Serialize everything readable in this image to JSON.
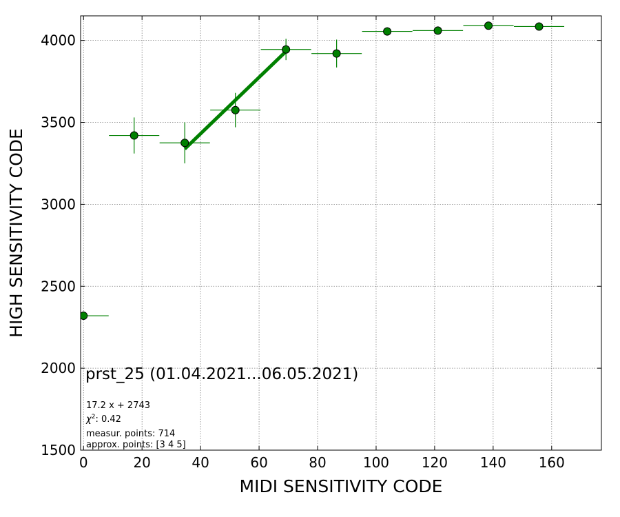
{
  "chart_data": {
    "type": "scatter",
    "title": "",
    "xlabel": "MIDI SENSITIVITY CODE",
    "ylabel": "HIGH SENSITIVITY CODE",
    "xlim": [
      -1,
      177
    ],
    "ylim": [
      1500,
      4150
    ],
    "xticks": [
      0,
      20,
      40,
      60,
      80,
      100,
      120,
      140,
      160
    ],
    "yticks": [
      1500,
      2000,
      2500,
      3000,
      3500,
      4000
    ],
    "grid": true,
    "series": [
      {
        "marker_color": "#008000",
        "points": [
          {
            "x": 0,
            "y": 2320,
            "xerr": 8.6,
            "yerr": 0
          },
          {
            "x": 17.3,
            "y": 3420,
            "xerr": 8.6,
            "yerr": 110
          },
          {
            "x": 34.6,
            "y": 3375,
            "xerr": 8.6,
            "yerr": 125
          },
          {
            "x": 51.9,
            "y": 3575,
            "xerr": 8.6,
            "yerr": 105
          },
          {
            "x": 69.2,
            "y": 3945,
            "xerr": 8.6,
            "yerr": 65
          },
          {
            "x": 86.5,
            "y": 3920,
            "xerr": 8.6,
            "yerr": 85
          },
          {
            "x": 103.8,
            "y": 4055,
            "xerr": 8.6,
            "yerr": 25
          },
          {
            "x": 121.1,
            "y": 4060,
            "xerr": 8.6,
            "yerr": 15
          },
          {
            "x": 138.4,
            "y": 4090,
            "xerr": 8.6,
            "yerr": 10
          },
          {
            "x": 155.7,
            "y": 4085,
            "xerr": 8.6,
            "yerr": 10
          }
        ]
      }
    ],
    "fit_line": {
      "slope": 17.2,
      "intercept": 2743,
      "x_range": [
        34.6,
        69.2
      ],
      "color": "#008000"
    },
    "annotations": {
      "main": "prst_25 (01.04.2021...06.05.2021)",
      "equation": "17.2 x + 2743",
      "chi_symbol": "χ",
      "chi_exp": "2",
      "chi_value": ": 0.42",
      "measur": "measur. points: 714",
      "approx": "approx. points: [3 4 5]"
    }
  }
}
